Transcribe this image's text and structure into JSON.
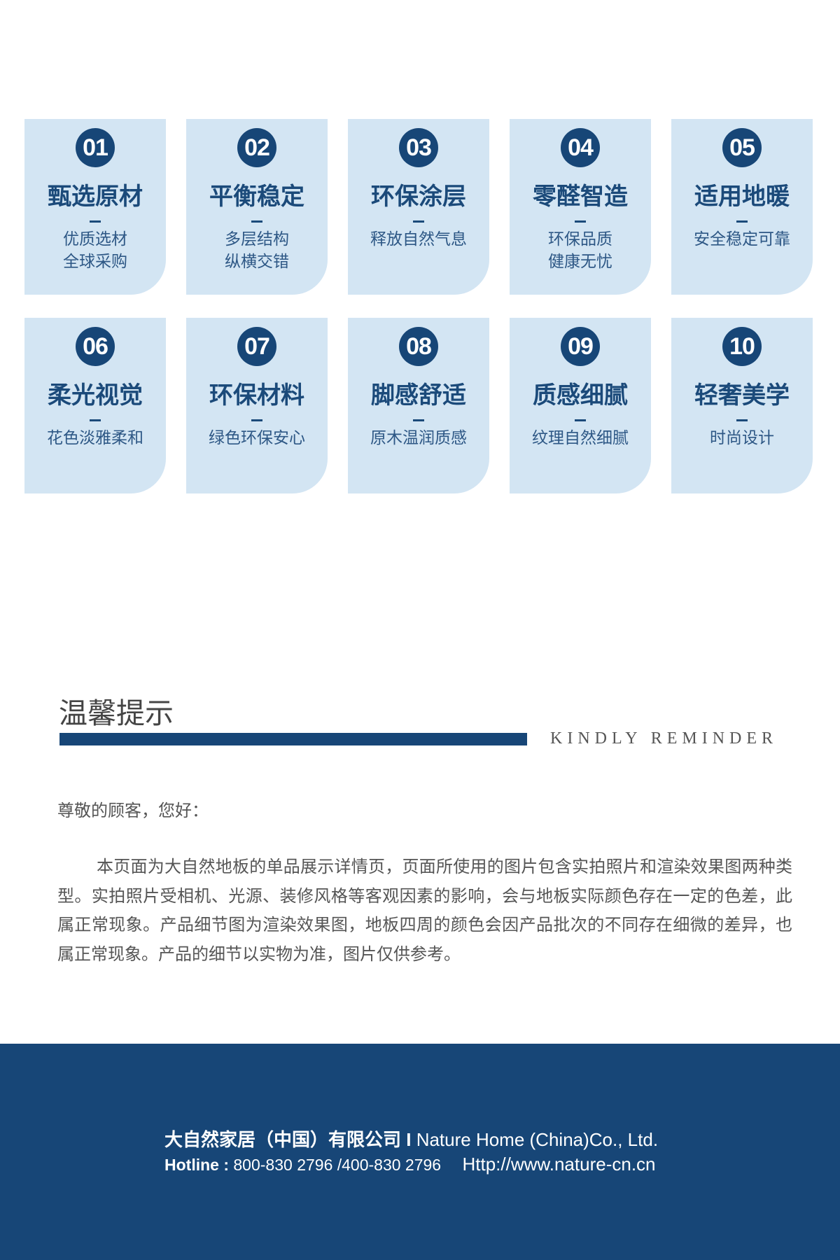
{
  "features": [
    {
      "num": "01",
      "title": "甄选原材",
      "lines": [
        "优质选材",
        "全球采购"
      ]
    },
    {
      "num": "02",
      "title": "平衡稳定",
      "lines": [
        "多层结构",
        "纵横交错"
      ]
    },
    {
      "num": "03",
      "title": "环保涂层",
      "lines": [
        "释放自然气息"
      ]
    },
    {
      "num": "04",
      "title": "零醛智造",
      "lines": [
        "环保品质",
        "健康无忧"
      ]
    },
    {
      "num": "05",
      "title": "适用地暖",
      "lines": [
        "安全稳定可靠"
      ]
    },
    {
      "num": "06",
      "title": "柔光视觉",
      "lines": [
        "花色淡雅柔和"
      ]
    },
    {
      "num": "07",
      "title": "环保材料",
      "lines": [
        "绿色环保安心"
      ]
    },
    {
      "num": "08",
      "title": "脚感舒适",
      "lines": [
        "原木温润质感"
      ]
    },
    {
      "num": "09",
      "title": "质感细腻",
      "lines": [
        "纹理自然细腻"
      ]
    },
    {
      "num": "10",
      "title": "轻奢美学",
      "lines": [
        "时尚设计"
      ]
    }
  ],
  "reminder": {
    "title": "温馨提示",
    "subtitle": "KINDLY REMINDER",
    "greeting": "尊敬的顾客，您好：",
    "body": "本页面为大自然地板的单品展示详情页，页面所使用的图片包含实拍照片和渲染效果图两种类型。实拍照片受相机、光源、装修风格等客观因素的影响，会与地板实际颜色存在一定的色差，此属正常现象。产品细节图为渲染效果图，地板四周的颜色会因产品批次的不同存在细微的差异，也属正常现象。产品的细节以实物为准，图片仅供参考。"
  },
  "footer": {
    "company_cn": "大自然家居（中国）有限公司 I",
    "company_en": "Nature Home (China)Co., Ltd.",
    "hotline_label": "Hotline :",
    "hotline": "800-830 2796 /400-830 2796",
    "url": "Http://www.nature-cn.cn"
  },
  "colors": {
    "accent": "#174677",
    "card_bg": "#d3e5f3"
  }
}
